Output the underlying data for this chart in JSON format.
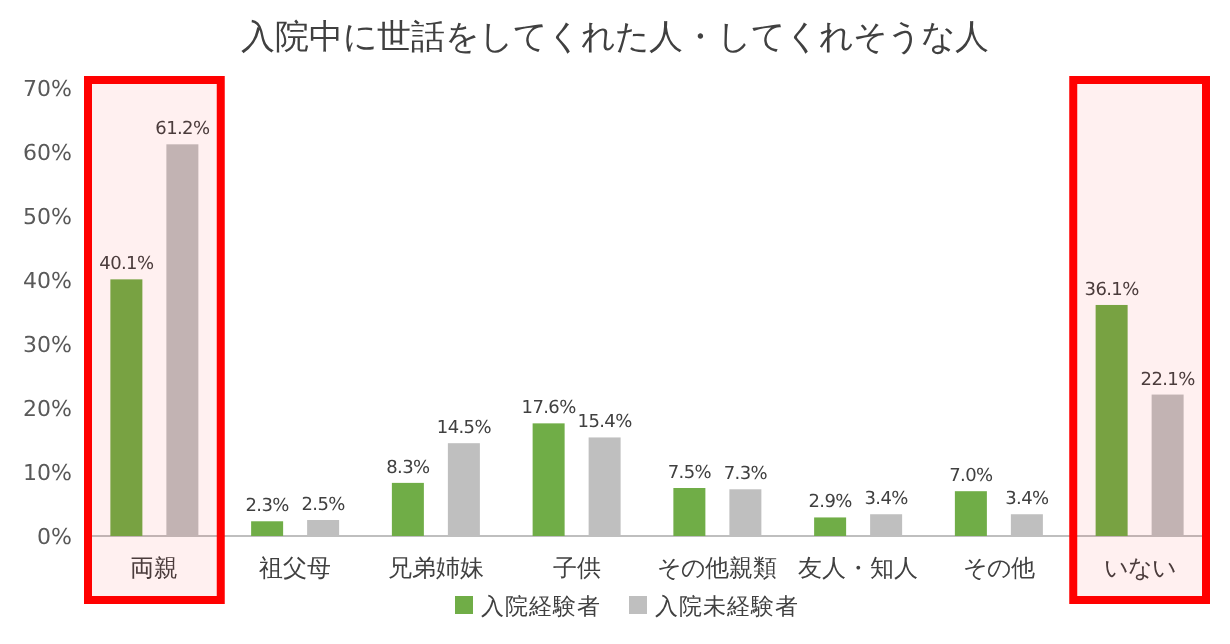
{
  "chart_data": {
    "type": "bar",
    "title": "入院中に世話をしてくれた人・してくれそうな人",
    "categories": [
      "両親",
      "祖父母",
      "兄弟姉妹",
      "子供",
      "その他親類",
      "友人・知人",
      "その他",
      "いない"
    ],
    "series": [
      {
        "name": "入院経験者",
        "color": "#70ad47",
        "values": [
          40.1,
          2.3,
          8.3,
          17.6,
          7.5,
          2.9,
          7.0,
          36.1
        ],
        "value_labels": [
          "40.1%",
          "2.3%",
          "8.3%",
          "17.6%",
          "7.5%",
          "2.9%",
          "7.0%",
          "36.1%"
        ]
      },
      {
        "name": "入院未経験者",
        "color": "#bfbfbf",
        "values": [
          61.2,
          2.5,
          14.5,
          15.4,
          7.3,
          3.4,
          3.4,
          22.1
        ],
        "value_labels": [
          "61.2%",
          "2.5%",
          "14.5%",
          "15.4%",
          "7.3%",
          "3.4%",
          "3.4%",
          "22.1%"
        ]
      }
    ],
    "ylim": [
      0,
      70
    ],
    "yticks": [
      {
        "value": 0,
        "label": "0%"
      },
      {
        "value": 10,
        "label": "10%"
      },
      {
        "value": 20,
        "label": "20%"
      },
      {
        "value": 30,
        "label": "30%"
      },
      {
        "value": 40,
        "label": "40%"
      },
      {
        "value": 50,
        "label": "50%"
      },
      {
        "value": 60,
        "label": "60%"
      },
      {
        "value": 70,
        "label": "70%"
      }
    ],
    "bands": [
      {
        "axis": "x",
        "from": "両親",
        "to": "両親",
        "color": "#ff0000"
      },
      {
        "axis": "x",
        "from": "いない",
        "to": "いない",
        "color": "#ff0000"
      }
    ],
    "legend": "bottom",
    "grid": false
  }
}
